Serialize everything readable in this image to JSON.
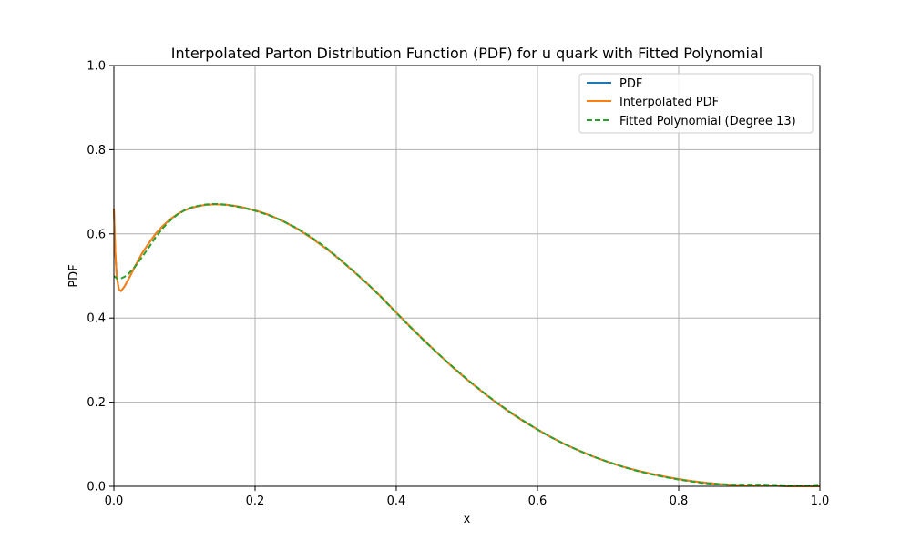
{
  "chart_data": {
    "type": "line",
    "title": "Interpolated Parton Distribution Function (PDF) for u quark with Fitted Polynomial",
    "xlabel": "x",
    "ylabel": "PDF",
    "xlim": [
      0.0,
      1.0
    ],
    "ylim": [
      0.0,
      1.0
    ],
    "xticks": [
      "0.0",
      "0.2",
      "0.4",
      "0.6",
      "0.8",
      "1.0"
    ],
    "yticks": [
      "0.0",
      "0.2",
      "0.4",
      "0.6",
      "0.8",
      "1.0"
    ],
    "grid": true,
    "legend_position": "top-right",
    "series": [
      {
        "name": "PDF",
        "color": "#1f77b4",
        "style": "solid",
        "x": [
          0.0,
          0.002,
          0.004,
          0.007,
          0.01,
          0.015,
          0.02,
          0.03,
          0.04,
          0.05,
          0.06,
          0.07,
          0.08,
          0.09,
          0.1,
          0.11,
          0.12,
          0.13,
          0.14,
          0.15,
          0.16,
          0.17,
          0.18,
          0.2,
          0.22,
          0.24,
          0.26,
          0.28,
          0.3,
          0.32,
          0.34,
          0.36,
          0.38,
          0.4,
          0.42,
          0.44,
          0.46,
          0.48,
          0.5,
          0.52,
          0.54,
          0.56,
          0.58,
          0.6,
          0.62,
          0.64,
          0.66,
          0.68,
          0.7,
          0.72,
          0.74,
          0.76,
          0.78,
          0.8,
          0.82,
          0.84,
          0.86,
          0.88,
          0.9,
          0.92,
          0.94,
          0.96,
          0.98,
          1.0
        ],
        "y": [
          0.66,
          0.555,
          0.5,
          0.468,
          0.464,
          0.475,
          0.49,
          0.523,
          0.554,
          0.579,
          0.602,
          0.62,
          0.635,
          0.647,
          0.656,
          0.662,
          0.666,
          0.669,
          0.67,
          0.67,
          0.669,
          0.667,
          0.664,
          0.656,
          0.645,
          0.63,
          0.612,
          0.59,
          0.566,
          0.539,
          0.51,
          0.48,
          0.448,
          0.413,
          0.379,
          0.346,
          0.314,
          0.283,
          0.254,
          0.227,
          0.201,
          0.177,
          0.155,
          0.135,
          0.116,
          0.099,
          0.084,
          0.07,
          0.058,
          0.047,
          0.038,
          0.03,
          0.023,
          0.017,
          0.012,
          0.008,
          0.005,
          0.003,
          0.002,
          0.001,
          0.001,
          0.0,
          0.0,
          0.0
        ]
      },
      {
        "name": "Interpolated PDF",
        "color": "#ff7f0e",
        "style": "solid",
        "x": [
          0.0,
          0.002,
          0.004,
          0.007,
          0.01,
          0.015,
          0.02,
          0.03,
          0.04,
          0.05,
          0.06,
          0.07,
          0.08,
          0.09,
          0.1,
          0.11,
          0.12,
          0.13,
          0.14,
          0.15,
          0.16,
          0.17,
          0.18,
          0.2,
          0.22,
          0.24,
          0.26,
          0.28,
          0.3,
          0.32,
          0.34,
          0.36,
          0.38,
          0.4,
          0.42,
          0.44,
          0.46,
          0.48,
          0.5,
          0.52,
          0.54,
          0.56,
          0.58,
          0.6,
          0.62,
          0.64,
          0.66,
          0.68,
          0.7,
          0.72,
          0.74,
          0.76,
          0.78,
          0.8,
          0.82,
          0.84,
          0.86,
          0.88,
          0.9,
          0.92,
          0.94,
          0.96,
          0.98,
          1.0
        ],
        "y": [
          0.66,
          0.555,
          0.5,
          0.468,
          0.464,
          0.475,
          0.49,
          0.523,
          0.554,
          0.579,
          0.602,
          0.62,
          0.635,
          0.647,
          0.656,
          0.662,
          0.666,
          0.669,
          0.67,
          0.67,
          0.669,
          0.667,
          0.664,
          0.656,
          0.645,
          0.63,
          0.612,
          0.59,
          0.566,
          0.539,
          0.51,
          0.48,
          0.448,
          0.413,
          0.379,
          0.346,
          0.314,
          0.283,
          0.254,
          0.227,
          0.201,
          0.177,
          0.155,
          0.135,
          0.116,
          0.099,
          0.084,
          0.07,
          0.058,
          0.047,
          0.038,
          0.03,
          0.023,
          0.017,
          0.012,
          0.008,
          0.005,
          0.003,
          0.002,
          0.001,
          0.001,
          0.0,
          0.0,
          0.0
        ]
      },
      {
        "name": "Fitted Polynomial (Degree 13)",
        "color": "#2ca02c",
        "style": "dashed",
        "x": [
          0.0,
          0.005,
          0.01,
          0.015,
          0.02,
          0.03,
          0.04,
          0.05,
          0.06,
          0.07,
          0.08,
          0.09,
          0.1,
          0.11,
          0.12,
          0.13,
          0.14,
          0.15,
          0.16,
          0.17,
          0.18,
          0.2,
          0.22,
          0.24,
          0.26,
          0.28,
          0.3,
          0.32,
          0.34,
          0.36,
          0.38,
          0.4,
          0.42,
          0.44,
          0.46,
          0.48,
          0.5,
          0.52,
          0.54,
          0.56,
          0.58,
          0.6,
          0.62,
          0.64,
          0.66,
          0.68,
          0.7,
          0.72,
          0.74,
          0.76,
          0.78,
          0.8,
          0.82,
          0.84,
          0.86,
          0.88,
          0.9,
          0.92,
          0.94,
          0.96,
          0.98,
          1.0
        ],
        "y": [
          0.5,
          0.493,
          0.494,
          0.498,
          0.504,
          0.522,
          0.545,
          0.569,
          0.594,
          0.615,
          0.632,
          0.646,
          0.656,
          0.663,
          0.667,
          0.67,
          0.671,
          0.671,
          0.669,
          0.666,
          0.663,
          0.655,
          0.644,
          0.63,
          0.613,
          0.592,
          0.568,
          0.54,
          0.511,
          0.48,
          0.447,
          0.412,
          0.378,
          0.345,
          0.314,
          0.284,
          0.255,
          0.228,
          0.202,
          0.178,
          0.156,
          0.135,
          0.116,
          0.099,
          0.084,
          0.07,
          0.058,
          0.047,
          0.037,
          0.029,
          0.022,
          0.016,
          0.011,
          0.007,
          0.005,
          0.004,
          0.004,
          0.004,
          0.003,
          0.002,
          0.001,
          0.004
        ]
      }
    ]
  }
}
